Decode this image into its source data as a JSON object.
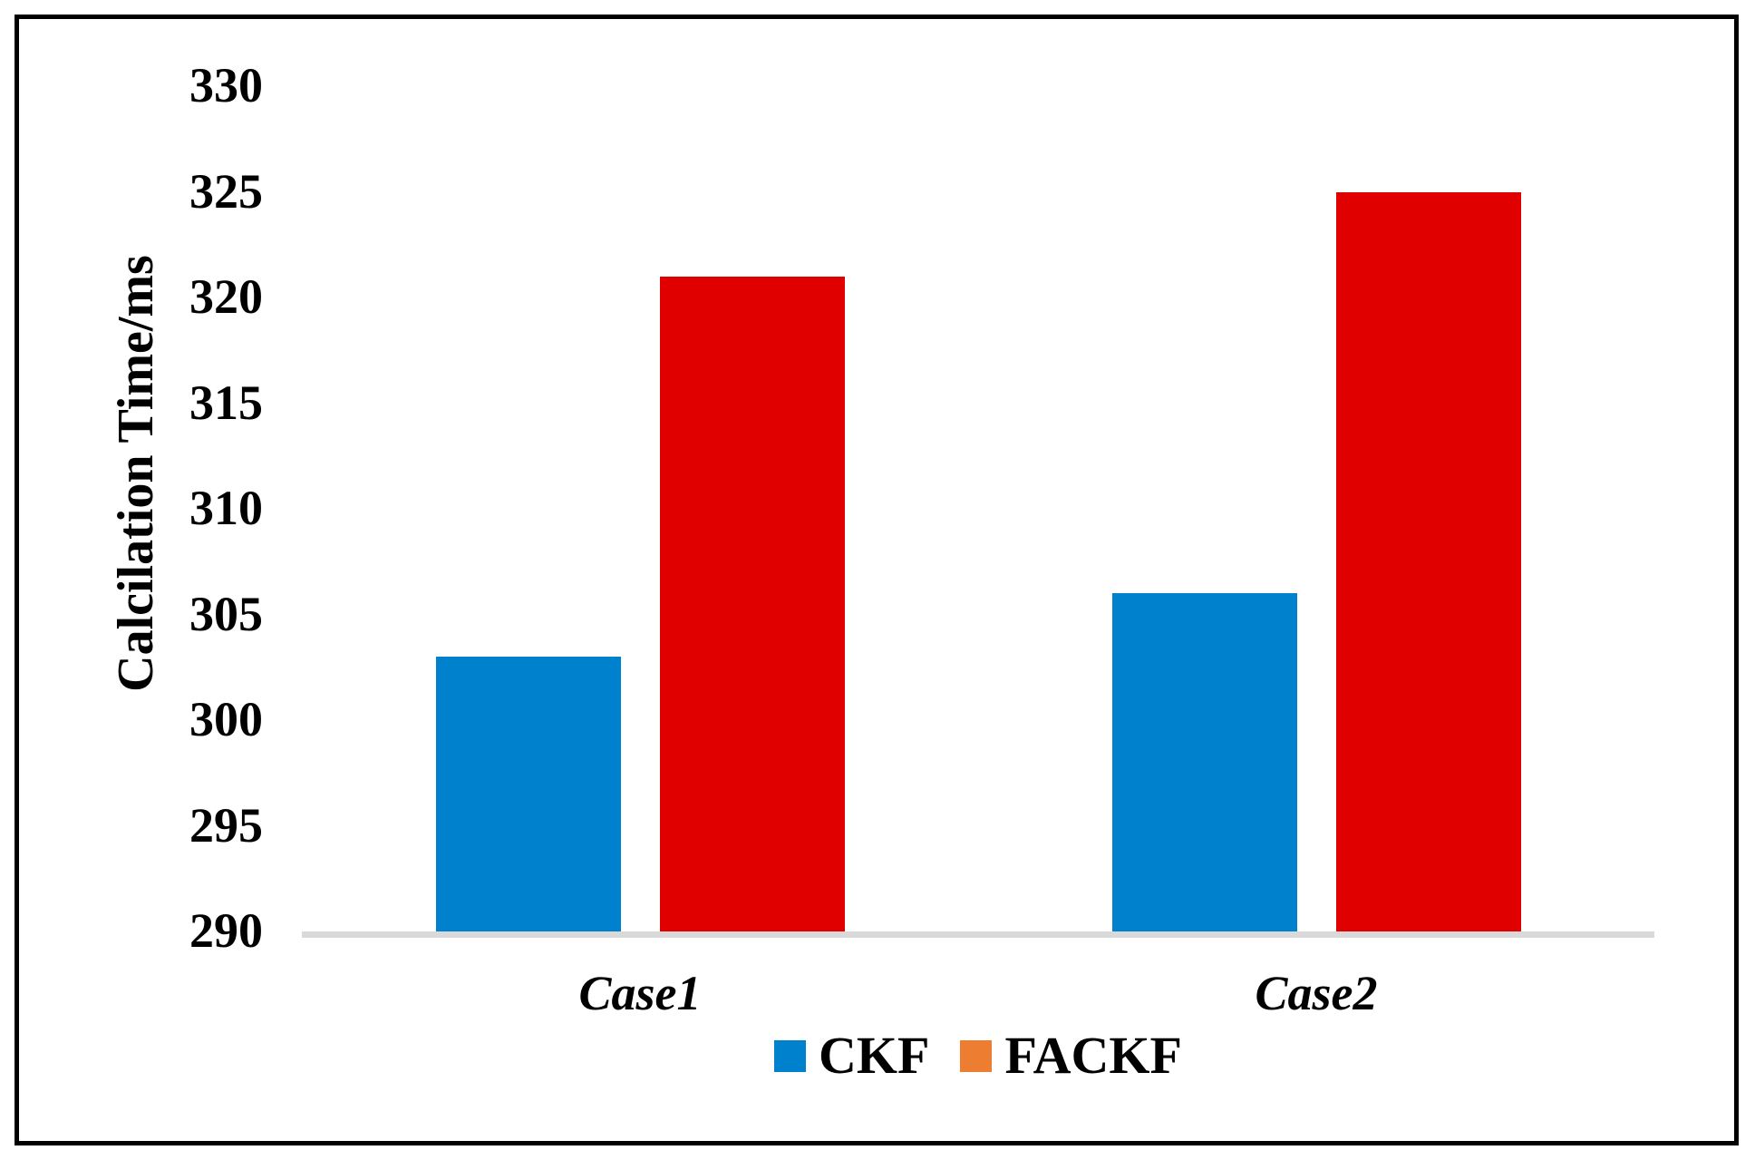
{
  "chart_data": {
    "type": "bar",
    "title": "",
    "ylabel": "Calcilation Time/ms",
    "xlabel": "",
    "categories": [
      "Case1",
      "Case2"
    ],
    "series": [
      {
        "name": "CKF",
        "bar_color": "#0081CE",
        "legend_color": "#0081CE",
        "values": [
          303,
          306
        ]
      },
      {
        "name": "FACKF",
        "bar_color": "#E00000",
        "legend_color": "#ED7D31",
        "values": [
          321,
          325
        ]
      }
    ],
    "ylim": [
      290,
      330
    ],
    "yticks": [
      290,
      295,
      300,
      305,
      310,
      315,
      320,
      325,
      330
    ],
    "grid": false,
    "legend_position": "bottom",
    "axis_line_color": "#D9D9D9",
    "frame_color": "#000000",
    "background_color": "#FFFFFF"
  }
}
